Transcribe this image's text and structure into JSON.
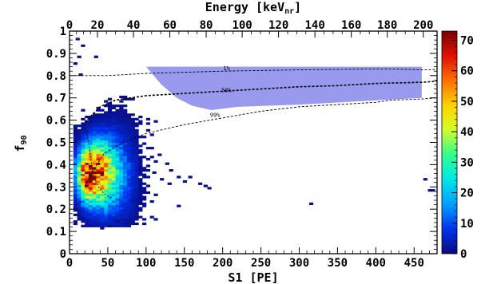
{
  "chart_data": {
    "type": "heatmap",
    "title": "",
    "xlabel": "S1 [PE]",
    "ylabel": "f",
    "ylabel_subscript": "90",
    "top_axis_label": "Energy [keV",
    "top_axis_label_subscript": "nr",
    "top_axis_label_suffix": "]",
    "xlim": [
      0,
      480
    ],
    "ylim": [
      0,
      1
    ],
    "x_ticks": [
      0,
      50,
      100,
      150,
      200,
      250,
      300,
      350,
      400,
      450
    ],
    "x_tick_labels": [
      "0",
      "50",
      "100",
      "150",
      "200",
      "250",
      "300",
      "350",
      "400",
      "450"
    ],
    "y_ticks": [
      0,
      0.1,
      0.2,
      0.3,
      0.4,
      0.5,
      0.6,
      0.7,
      0.8,
      0.9,
      1
    ],
    "y_tick_labels": [
      "0",
      "0.1",
      "0.2",
      "0.3",
      "0.4",
      "0.5",
      "0.6",
      "0.7",
      "0.8",
      "0.9",
      "1"
    ],
    "top_axis_ticks": [
      {
        "energy": 0,
        "s1": 0,
        "label": "0"
      },
      {
        "energy": 20,
        "s1": 36.5,
        "label": "20"
      },
      {
        "energy": 40,
        "s1": 83.5,
        "label": "40"
      },
      {
        "energy": 60,
        "s1": 131,
        "label": "60"
      },
      {
        "energy": 80,
        "s1": 178.5,
        "label": "80"
      },
      {
        "energy": 100,
        "s1": 225.5,
        "label": "100"
      },
      {
        "energy": 120,
        "s1": 273,
        "label": "120"
      },
      {
        "energy": 140,
        "s1": 320.5,
        "label": "140"
      },
      {
        "energy": 160,
        "s1": 368,
        "label": "160"
      },
      {
        "energy": 180,
        "s1": 415,
        "label": "180"
      },
      {
        "energy": 200,
        "s1": 462,
        "label": "200"
      }
    ],
    "colorbar": {
      "min": 0,
      "max": 73,
      "ticks": [
        0,
        10,
        20,
        30,
        40,
        50,
        60,
        70
      ],
      "tick_labels": [
        "0",
        "10",
        "20",
        "30",
        "40",
        "50",
        "60",
        "70"
      ]
    },
    "colormap_stops": [
      "#0a0a7e",
      "#0033ee",
      "#00a0ff",
      "#00e6e6",
      "#30ff90",
      "#d2ff2a",
      "#ffd200",
      "#ff7000",
      "#e01000",
      "#7a0000"
    ],
    "acceptance_region": {
      "color": "#9999ee",
      "top_f90": 0.84,
      "x_start": 100,
      "x_end": 460,
      "lower_boundary": [
        [
          100,
          0.84
        ],
        [
          120,
          0.76
        ],
        [
          140,
          0.7
        ],
        [
          160,
          0.665
        ],
        [
          185,
          0.645
        ],
        [
          220,
          0.66
        ],
        [
          300,
          0.67
        ],
        [
          380,
          0.685
        ],
        [
          460,
          0.7
        ]
      ]
    },
    "contours": [
      {
        "label": "1%",
        "label_at": [
          205,
          0.825
        ],
        "points": [
          [
            10,
            0.8
          ],
          [
            50,
            0.8
          ],
          [
            100,
            0.81
          ],
          [
            150,
            0.815
          ],
          [
            200,
            0.82
          ],
          [
            250,
            0.823
          ],
          [
            300,
            0.826
          ],
          [
            350,
            0.828
          ],
          [
            400,
            0.83
          ],
          [
            420,
            0.83
          ],
          [
            460,
            0.826
          ],
          [
            480,
            0.828
          ]
        ]
      },
      {
        "label": "50%",
        "label_at": [
          205,
          0.725
        ],
        "points": [
          [
            20,
            0.59
          ],
          [
            40,
            0.66
          ],
          [
            60,
            0.69
          ],
          [
            100,
            0.71
          ],
          [
            150,
            0.72
          ],
          [
            200,
            0.73
          ],
          [
            250,
            0.74
          ],
          [
            300,
            0.75
          ],
          [
            350,
            0.755
          ],
          [
            400,
            0.765
          ],
          [
            460,
            0.77
          ],
          [
            480,
            0.775
          ]
        ]
      },
      {
        "label": "99%",
        "label_at": [
          190,
          0.615
        ],
        "points": [
          [
            20,
            0.3
          ],
          [
            30,
            0.37
          ],
          [
            45,
            0.45
          ],
          [
            70,
            0.5
          ],
          [
            100,
            0.54
          ],
          [
            150,
            0.58
          ],
          [
            200,
            0.61
          ],
          [
            250,
            0.64
          ],
          [
            300,
            0.66
          ],
          [
            350,
            0.67
          ],
          [
            400,
            0.68
          ],
          [
            420,
            0.69
          ],
          [
            460,
            0.695
          ],
          [
            480,
            0.7
          ]
        ]
      }
    ],
    "core_curve": [
      [
        20,
        0.58
      ],
      [
        25,
        0.5
      ],
      [
        28,
        0.42
      ],
      [
        32,
        0.34
      ],
      [
        38,
        0.3
      ],
      [
        45,
        0.27
      ],
      [
        55,
        0.25
      ]
    ],
    "dense_region": {
      "x_range": [
        5,
        150
      ],
      "y_range": [
        0.12,
        0.72
      ],
      "peak": [
        25,
        0.36
      ],
      "peak_value": 73
    },
    "isolated_points": [
      {
        "x": 8,
        "y": 0.96,
        "v": 2
      },
      {
        "x": 15,
        "y": 0.93,
        "v": 1
      },
      {
        "x": 10,
        "y": 0.88,
        "v": 1
      },
      {
        "x": 5,
        "y": 0.85,
        "v": 1
      },
      {
        "x": 32,
        "y": 0.88,
        "v": 1
      },
      {
        "x": 12,
        "y": 0.8,
        "v": 1
      },
      {
        "x": 108,
        "y": 0.36,
        "v": 1
      },
      {
        "x": 118,
        "y": 0.33,
        "v": 1
      },
      {
        "x": 128,
        "y": 0.31,
        "v": 1
      },
      {
        "x": 125,
        "y": 0.4,
        "v": 1
      },
      {
        "x": 130,
        "y": 0.37,
        "v": 1
      },
      {
        "x": 110,
        "y": 0.41,
        "v": 1
      },
      {
        "x": 148,
        "y": 0.32,
        "v": 1
      },
      {
        "x": 168,
        "y": 0.31,
        "v": 1
      },
      {
        "x": 175,
        "y": 0.3,
        "v": 1
      },
      {
        "x": 180,
        "y": 0.29,
        "v": 1
      },
      {
        "x": 140,
        "y": 0.21,
        "v": 1
      },
      {
        "x": 155,
        "y": 0.34,
        "v": 1
      },
      {
        "x": 313,
        "y": 0.22,
        "v": 1
      },
      {
        "x": 462,
        "y": 0.33,
        "v": 1
      },
      {
        "x": 468,
        "y": 0.28,
        "v": 1
      },
      {
        "x": 472,
        "y": 0.28,
        "v": 1
      },
      {
        "x": 60,
        "y": 0.14,
        "v": 1
      },
      {
        "x": 40,
        "y": 0.11,
        "v": 1
      },
      {
        "x": 50,
        "y": 0.12,
        "v": 1
      }
    ]
  }
}
